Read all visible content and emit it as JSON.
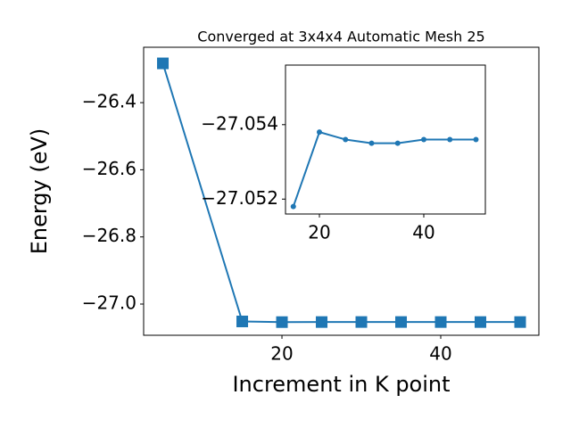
{
  "chart_data": [
    {
      "type": "line",
      "title": "Converged at 3x4x4 Automatic Mesh 25",
      "x_label": "Increment in K point",
      "y_label": "Energy (eV)",
      "x": [
        5,
        15,
        20,
        25,
        30,
        35,
        40,
        45,
        50
      ],
      "values": [
        -26.283,
        -27.0518,
        -27.0538,
        -27.0536,
        -27.0535,
        -27.0535,
        -27.0536,
        -27.0536,
        -27.0536
      ],
      "color": "#1f77b4",
      "marker": "square",
      "xlim": [
        2.58,
        52.36
      ],
      "xticks": [
        20,
        40
      ],
      "ylim": [
        -27.093,
        -26.235
      ],
      "yticks": [
        {
          "value": -27.0,
          "label": "−27.0"
        },
        {
          "value": -26.8,
          "label": "−26.8"
        },
        {
          "value": -26.6,
          "label": "−26.6"
        },
        {
          "value": -26.4,
          "label": "−26.4"
        }
      ]
    },
    {
      "type": "line",
      "x": [
        15,
        20,
        25,
        30,
        35,
        40,
        45,
        50
      ],
      "values": [
        -27.0518,
        -27.0538,
        -27.0536,
        -27.0535,
        -27.0535,
        -27.0536,
        -27.0536,
        -27.0536
      ],
      "color": "#1f77b4",
      "marker": "circle",
      "xlim": [
        13.5,
        51.8
      ],
      "xticks": [
        20,
        40
      ],
      "ylim": [
        -27.0516,
        -27.0556
      ],
      "yticks": [
        {
          "value": -27.052,
          "label": "−27.052"
        },
        {
          "value": -27.054,
          "label": "−27.054"
        }
      ]
    }
  ]
}
